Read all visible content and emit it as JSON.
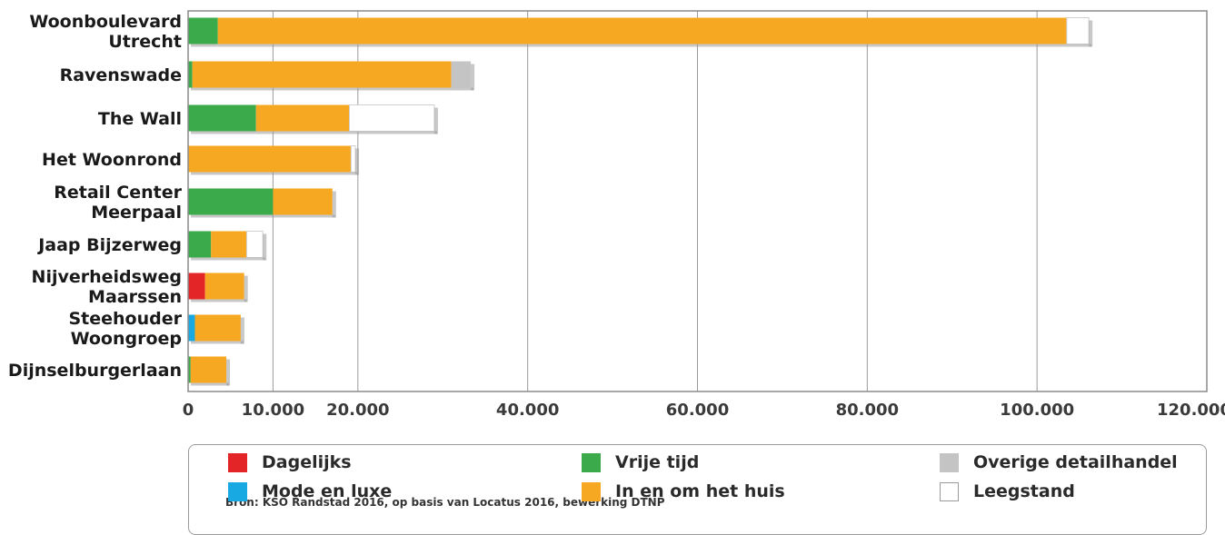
{
  "colors": {
    "Dagelijks": "#e42528",
    "Mode en luxe": "#19a9e2",
    "Vrije tijd": "#3aaa4a",
    "In en om het huis": "#f7a823",
    "Overige detailhandel": "#c4c4c4",
    "Leegstand": "#ffffff"
  },
  "chart_data": {
    "type": "bar",
    "orientation": "horizontal",
    "stacked": true,
    "categories": [
      [
        "Woonboulevard",
        "Utrecht"
      ],
      [
        "Ravenswade"
      ],
      [
        "The Wall"
      ],
      [
        "Het Woonrond"
      ],
      [
        "Retail Center",
        "Meerpaal"
      ],
      [
        "Jaap Bijzerweg"
      ],
      [
        "Nijverheidsweg",
        "Maarssen"
      ],
      [
        "Steehouder",
        "Woongroep"
      ],
      [
        "Dijnselburgerlaan"
      ]
    ],
    "series": [
      {
        "name": "Dagelijks",
        "values": [
          0,
          0,
          0,
          0,
          0,
          0,
          2000,
          0,
          0
        ]
      },
      {
        "name": "Mode en luxe",
        "values": [
          0,
          0,
          0,
          0,
          0,
          0,
          0,
          800,
          0
        ]
      },
      {
        "name": "Vrije tijd",
        "values": [
          3500,
          500,
          8000,
          0,
          10000,
          2700,
          0,
          0,
          300
        ]
      },
      {
        "name": "In en om het huis",
        "values": [
          100000,
          30500,
          11000,
          19200,
          7000,
          4200,
          4600,
          5400,
          4200
        ]
      },
      {
        "name": "Overige detailhandel",
        "values": [
          0,
          2300,
          0,
          0,
          0,
          0,
          0,
          0,
          0
        ]
      },
      {
        "name": "Leegstand",
        "values": [
          2600,
          0,
          10000,
          500,
          0,
          1900,
          0,
          0,
          0
        ]
      }
    ],
    "ticks": [
      0,
      10000,
      20000,
      40000,
      60000,
      80000,
      100000,
      120000
    ],
    "tick_labels": [
      "0",
      "10.000",
      "20.000",
      "40.000",
      "60.000",
      "80.000",
      "100.000",
      "120.000"
    ],
    "xlim": [
      0,
      120000
    ],
    "grid": true,
    "legend_position": "bottom",
    "legend_items": [
      "Dagelijks",
      "Vrije tijd",
      "Overige detailhandel",
      "Mode en luxe",
      "In en om het huis",
      "Leegstand"
    ]
  },
  "source": "Bron: KSO Randstad 2016, op basis van Locatus 2016, bewerking DTNP"
}
